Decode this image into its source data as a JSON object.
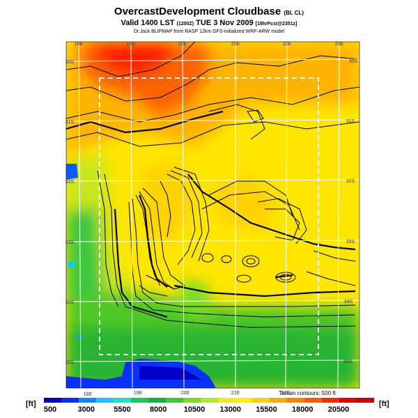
{
  "title": {
    "main": "OvercastDevelopment Cloudbase",
    "suffix": "(BL CL)"
  },
  "valid": {
    "main": "Valid 1400 LST",
    "code": "(1200Z)",
    "date": "TUE 3 Nov 2009",
    "fcst": "[18hrFcst@2351z]"
  },
  "credit": "Dr.Jack BLIPMAP from RASP 12km GFS-initialized WRF-ARW model",
  "terrain_note": "Terrain contours: 500 ft",
  "units_label": "[ft]",
  "top_lon_labels": [
    "18E",
    "19E",
    "20E",
    "21E",
    "22E",
    "23E"
  ],
  "bottom_lon_labels": [
    "18E",
    "19E",
    "20E",
    "21E",
    "22E"
  ],
  "left_lat_labels": [
    "30S",
    "31S",
    "32S",
    "33S",
    "34S",
    "35S"
  ],
  "right_lat_labels": [
    "30S",
    "31S",
    "32S",
    "33S",
    "34S",
    "35S"
  ],
  "colorbar": {
    "colors": [
      "#0000c8",
      "#0032ff",
      "#0a8cff",
      "#14c8ff",
      "#14e6c8",
      "#14c864",
      "#14b43c",
      "#3cc83c",
      "#78dc28",
      "#b4e628",
      "#e6f014",
      "#fff000",
      "#ffd200",
      "#ffaa00",
      "#ff8200",
      "#ff5a00",
      "#ff2800",
      "#e60000",
      "#c80000"
    ],
    "ticks": [
      "500",
      "3000",
      "5500",
      "8000",
      "10500",
      "13000",
      "15500",
      "18000",
      "20500"
    ]
  }
}
